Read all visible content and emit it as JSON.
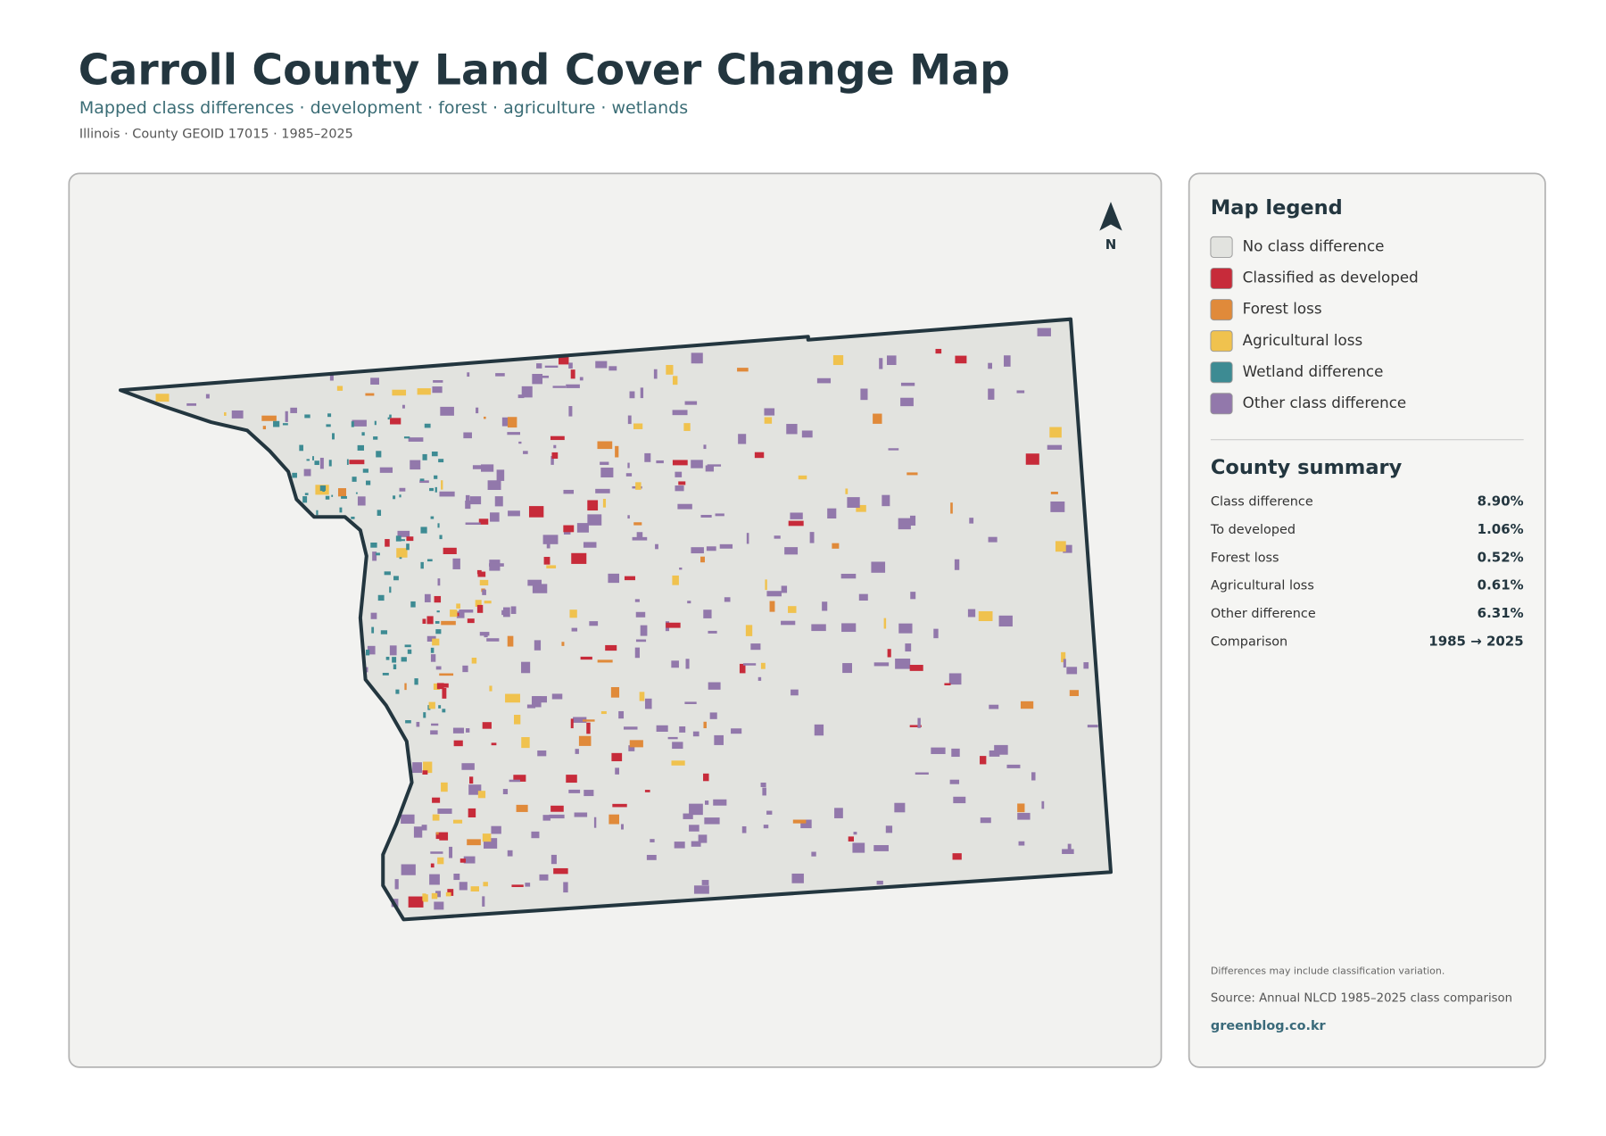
{
  "header": {
    "title": "Carroll County Land Cover Change Map",
    "subtitle": "Mapped class differences · development · forest · agriculture · wetlands",
    "meta": "Illinois · County GEOID 17015 · 1985–2025"
  },
  "map": {
    "north_label": "N"
  },
  "legend": {
    "title": "Map legend",
    "items": [
      {
        "label": "No class difference",
        "color": "#e2e3df"
      },
      {
        "label": "Classified as developed",
        "color": "#c72b3a"
      },
      {
        "label": "Forest loss",
        "color": "#e08a3a"
      },
      {
        "label": "Agricultural loss",
        "color": "#f0c24e"
      },
      {
        "label": "Wetland difference",
        "color": "#3d8b93"
      },
      {
        "label": "Other class difference",
        "color": "#9278ab"
      }
    ]
  },
  "summary": {
    "title": "County summary",
    "rows": [
      [
        "Class difference",
        "8.90%"
      ],
      [
        "To developed",
        "1.06%"
      ],
      [
        "Forest loss",
        "0.52%"
      ],
      [
        "Agricultural loss",
        "0.61%"
      ],
      [
        "Other difference",
        "6.31%"
      ],
      [
        "Comparison",
        "1985 → 2025"
      ]
    ]
  },
  "footer": {
    "note": "Differences may include classification variation.",
    "source": "Source: Annual NLCD 1985–2025 class comparison",
    "site": "greenblog.co.kr"
  }
}
